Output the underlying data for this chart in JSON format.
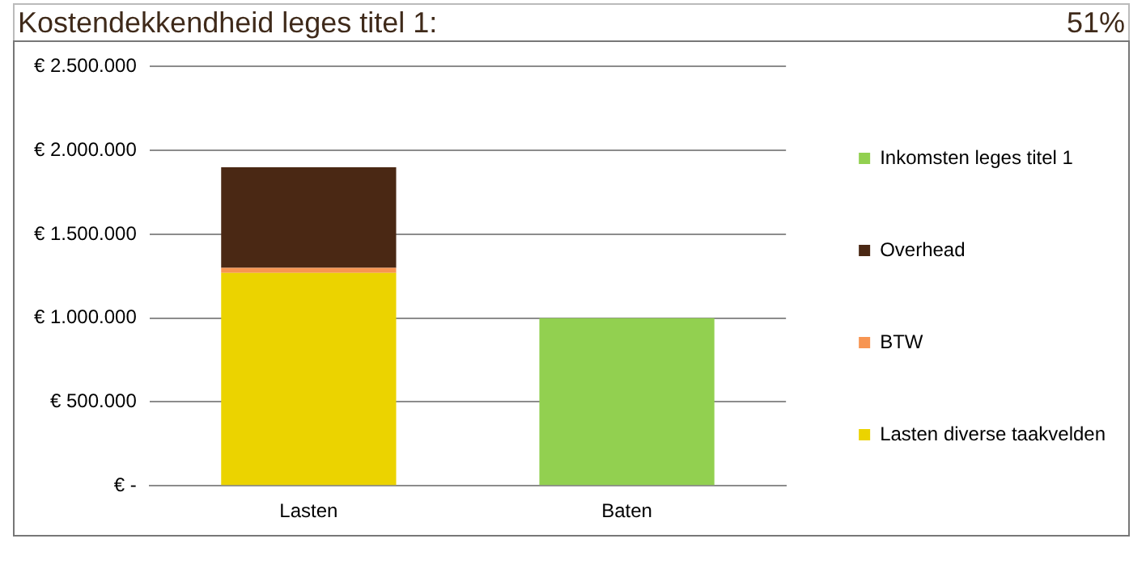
{
  "chart_data": {
    "type": "bar",
    "title": "Kostendekkendheid leges titel 1:",
    "annotations": [
      "51%"
    ],
    "categories": [
      "Lasten",
      "Baten"
    ],
    "stacked": true,
    "series": [
      {
        "name": "Lasten diverse taakvelden",
        "color": "#ebd300",
        "values": [
          1270000,
          null
        ]
      },
      {
        "name": "BTW",
        "color": "#f79552",
        "values": [
          30000,
          null
        ]
      },
      {
        "name": "Overhead",
        "color": "#4a2814",
        "values": [
          600000,
          null
        ]
      },
      {
        "name": "Inkomsten leges titel 1",
        "color": "#92d050",
        "values": [
          null,
          1000000
        ]
      }
    ],
    "ylim": [
      0,
      2500000
    ],
    "yticks": [
      {
        "value": 0,
        "label": "€ -"
      },
      {
        "value": 500000,
        "label": "€ 500.000"
      },
      {
        "value": 1000000,
        "label": "€ 1.000.000"
      },
      {
        "value": 1500000,
        "label": "€ 1.500.000"
      },
      {
        "value": 2000000,
        "label": "€ 2.000.000"
      },
      {
        "value": 2500000,
        "label": "€ 2.500.000"
      }
    ],
    "grid": "y",
    "legend": "right"
  }
}
